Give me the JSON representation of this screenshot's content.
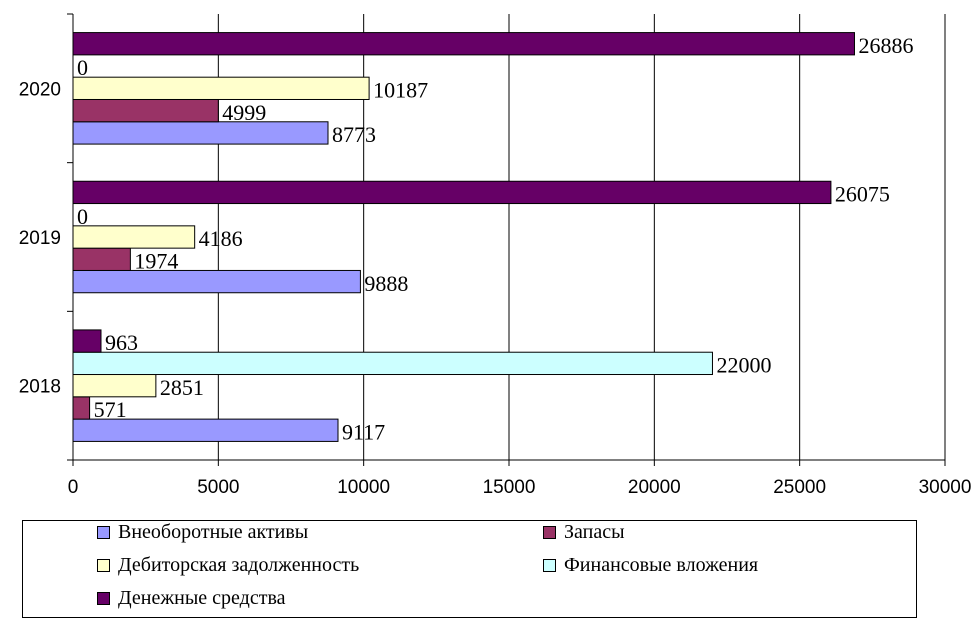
{
  "chart_data": {
    "type": "bar",
    "orientation": "horizontal",
    "categories": [
      "2018",
      "2019",
      "2020"
    ],
    "series": [
      {
        "name": "Внеоборотные активы",
        "color": "#9999ff",
        "values": [
          9117,
          9888,
          8773
        ]
      },
      {
        "name": "Запасы",
        "color": "#993366",
        "values": [
          571,
          1974,
          4999
        ]
      },
      {
        "name": "Дебиторская задолженность",
        "color": "#ffffcc",
        "values": [
          2851,
          4186,
          10187
        ]
      },
      {
        "name": "Финансовые вложения",
        "color": "#ccffff",
        "values": [
          22000,
          0,
          0
        ]
      },
      {
        "name": "Денежные средства",
        "color": "#660066",
        "values": [
          963,
          26075,
          26886
        ]
      }
    ],
    "xlim": [
      0,
      30000
    ],
    "xticks": [
      "0",
      "5000",
      "10000",
      "15000",
      "20000",
      "25000",
      "30000"
    ],
    "grid": "vertical",
    "legend_position": "bottom",
    "data_labels": true
  }
}
